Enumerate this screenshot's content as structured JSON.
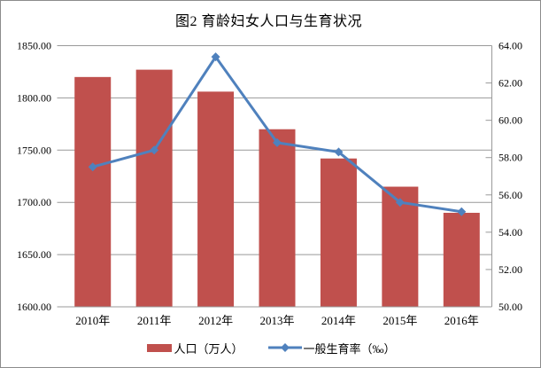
{
  "title": "图2 育龄妇女人口与生育状况",
  "legend": [
    {
      "label": "人口（万人）",
      "swatch": "bar",
      "color": "#C0504D"
    },
    {
      "label": "一般生育率（‰）",
      "swatch": "line",
      "color": "#4F81BD"
    }
  ],
  "colors": {
    "bar": "#C0504D",
    "line": "#4F81BD",
    "grid": "#999999",
    "axis": "#808080",
    "text": "#000000",
    "border": "#8C8C8C"
  },
  "chart_data": {
    "type": "bar",
    "subtype": "combo-bar-line-dual-axis",
    "title": "图2 育龄妇女人口与生育状况",
    "categories": [
      "2010年",
      "2011年",
      "2012年",
      "2013年",
      "2014年",
      "2015年",
      "2016年"
    ],
    "series": [
      {
        "name": "人口（万人）",
        "type": "bar",
        "axis": "left",
        "color": "#C0504D",
        "values": [
          1820,
          1827,
          1806,
          1770,
          1742,
          1715,
          1690
        ]
      },
      {
        "name": "一般生育率（‰）",
        "type": "line",
        "axis": "right",
        "color": "#4F81BD",
        "marker": "diamond",
        "values": [
          57.5,
          58.4,
          63.4,
          58.8,
          58.3,
          55.6,
          55.1
        ]
      }
    ],
    "left_axis": {
      "min": 1600,
      "max": 1850,
      "step": 50,
      "tick_format": "two-decimals"
    },
    "right_axis": {
      "min": 50,
      "max": 64,
      "step": 2,
      "tick_format": "two-decimals"
    },
    "grid": true,
    "legend_position": "bottom",
    "xlabel": "",
    "ylabel": ""
  }
}
